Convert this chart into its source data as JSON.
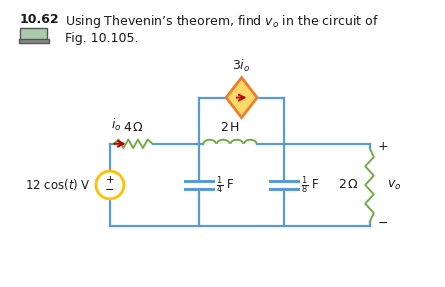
{
  "bg_color": "#ffffff",
  "wire_color": "#5b9bd5",
  "resistor_color": "#70ad47",
  "inductor_color": "#70ad47",
  "vsource_color": "#ffc000",
  "cccs_color": "#ed7d31",
  "cccs_fill": "#ffd966",
  "arrow_color": "#c00000",
  "resistor2_color": "#70ad47",
  "text_color": "#1a1a1a",
  "title_bold": "10.62",
  "title_rest": "  Using Thevenin’s theorem, find $v_o$ in the circuit of\n       Fig. 10.105.",
  "label_io": "$i_o$",
  "label_4ohm": "4 Ω",
  "label_2H": "2 H",
  "label_3io": "$3i_o$",
  "label_14F": "$\\frac{1}{4}$ F",
  "label_18F": "$\\frac{1}{8}$ F",
  "label_2ohm": "2 Ω",
  "label_vo": "$v_o$",
  "label_vs": "12 cos($t$) V"
}
